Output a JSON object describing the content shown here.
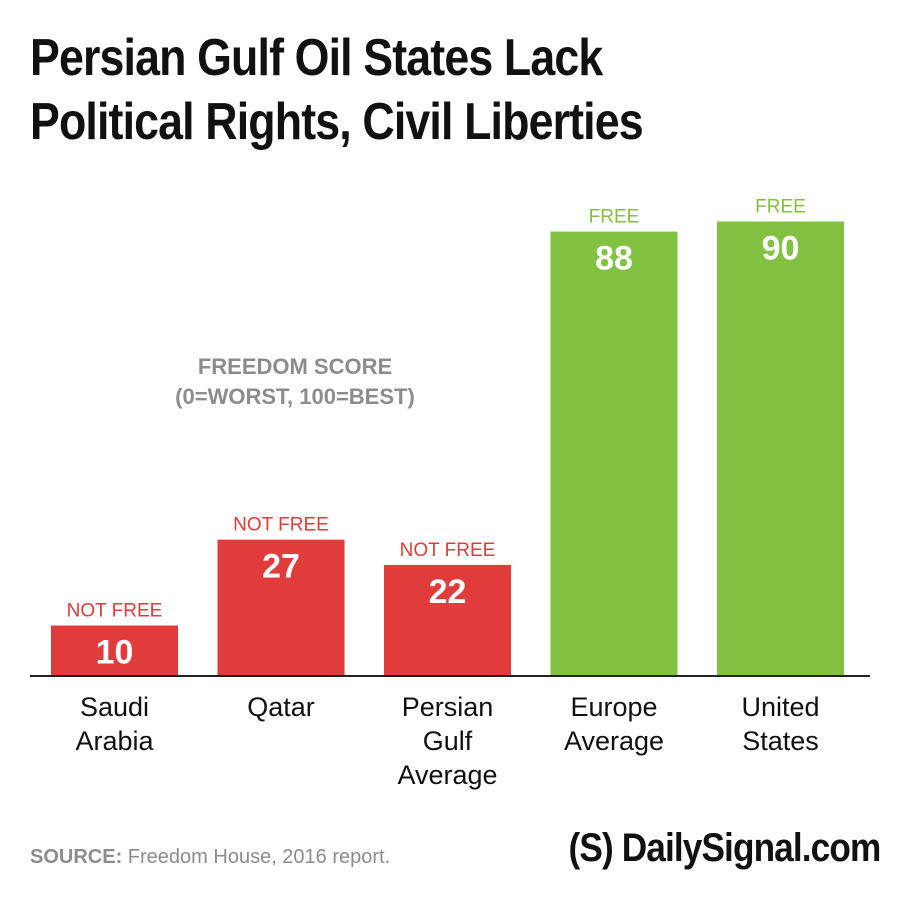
{
  "chart_data": {
    "type": "bar",
    "title_lines": [
      "Persian Gulf Oil States Lack",
      "Political Rights, Civil Liberties"
    ],
    "axis_note_lines": [
      "FREEDOM SCORE",
      "(0=WORST, 100=BEST)"
    ],
    "categories": [
      [
        "Saudi",
        "Arabia"
      ],
      [
        "Qatar"
      ],
      [
        "Persian",
        "Gulf",
        "Average"
      ],
      [
        "Europe",
        "Average"
      ],
      [
        "United",
        "States"
      ]
    ],
    "values": [
      10,
      27,
      22,
      88,
      90
    ],
    "status_labels": [
      "NOT FREE",
      "NOT FREE",
      "NOT FREE",
      "FREE",
      "FREE"
    ],
    "ylim": [
      0,
      100
    ],
    "grid": false,
    "colors": {
      "not_free": "#e23b3b",
      "free": "#82c142",
      "note": "#8c8c8c",
      "baseline": "#222222"
    }
  },
  "footer": {
    "source_label": "SOURCE:",
    "source_text": " Freedom House, 2016 report.",
    "logo_text": "(S) DailySignal.com"
  }
}
